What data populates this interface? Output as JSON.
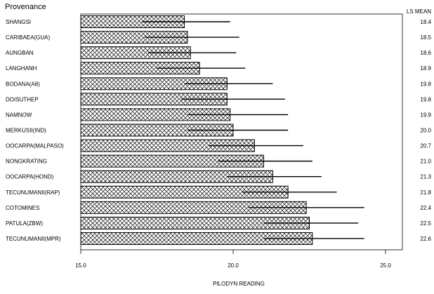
{
  "chart_data": {
    "type": "bar",
    "orientation": "horizontal",
    "title": "Provenance",
    "xlabel": "PILODYN READING",
    "value_column_header": "LS MEAN",
    "xlim": [
      15.0,
      25.0
    ],
    "x_ticks": [
      "15.0",
      "20.0",
      "25.0"
    ],
    "categories": [
      "SHANGSI",
      "CARIBAEA(GUA)",
      "AUNGBAN",
      "LANGHANH",
      "BODANA(A8)",
      "DOISUTHEP",
      "NAMNOW",
      "MERKUSII(IND)",
      "OOCARPA(MALPASO)",
      "NONGKRATING",
      "OOCARPA(HOND)",
      "TECUNUMANII(RAP)",
      "COTOMINES",
      "PATULA(ZBW)",
      "TECUNUMANII(MPR)"
    ],
    "values": [
      18.4,
      18.5,
      18.6,
      18.9,
      19.8,
      19.8,
      19.9,
      20.0,
      20.7,
      21.0,
      21.3,
      21.8,
      22.4,
      22.5,
      22.6
    ],
    "value_labels": [
      "18.4",
      "18.5",
      "18.6",
      "18.9",
      "19.8",
      "19.8",
      "19.9",
      "20.0",
      "20.7",
      "21.0",
      "21.3",
      "21.8",
      "22.4",
      "22.5",
      "22.6"
    ],
    "error_low": [
      17.0,
      17.1,
      17.2,
      17.5,
      18.4,
      18.3,
      18.5,
      18.5,
      19.2,
      19.5,
      19.8,
      20.3,
      20.5,
      21.0,
      21.0
    ],
    "error_high": [
      19.9,
      20.2,
      20.1,
      20.4,
      21.3,
      21.7,
      21.8,
      21.8,
      22.3,
      22.6,
      22.9,
      23.4,
      24.3,
      24.1,
      24.3
    ],
    "bar_fill": "crosshatch",
    "grid": false
  }
}
